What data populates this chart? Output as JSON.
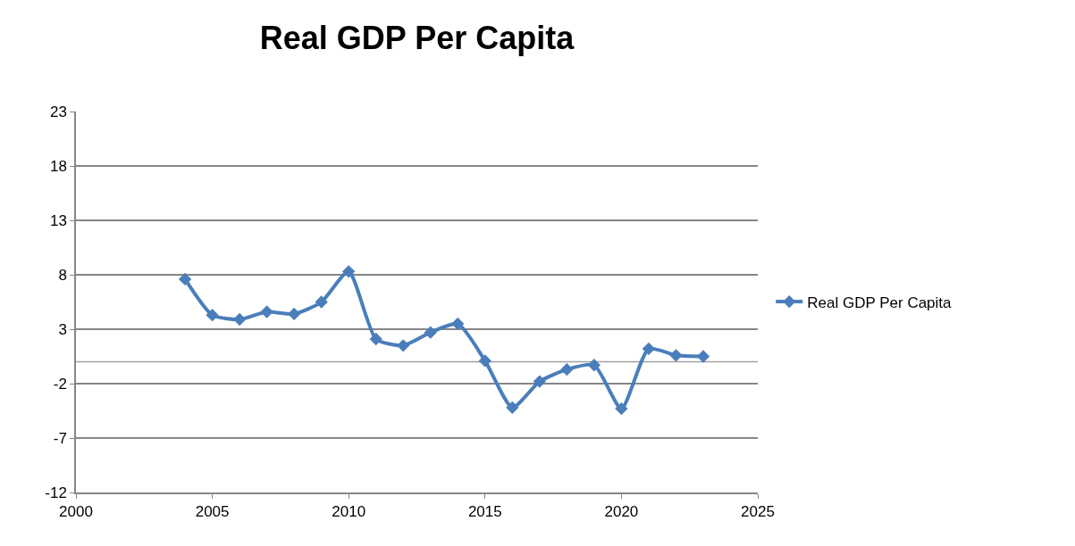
{
  "chart_data": {
    "type": "line",
    "title": "Real GDP Per Capita",
    "x": [
      2004,
      2005,
      2006,
      2007,
      2008,
      2009,
      2010,
      2011,
      2012,
      2013,
      2014,
      2015,
      2016,
      2017,
      2018,
      2019,
      2020,
      2021,
      2022,
      2023
    ],
    "series": [
      {
        "name": "Real GDP Per Capita",
        "color": "#4a7ebb",
        "values": [
          7.6,
          4.3,
          3.9,
          4.6,
          4.4,
          5.5,
          8.3,
          2.1,
          1.5,
          2.7,
          3.5,
          0.1,
          -4.2,
          -1.8,
          -0.7,
          -0.3,
          -4.3,
          1.2,
          0.6,
          0.5
        ]
      }
    ],
    "xlim": [
      2000,
      2025
    ],
    "xticks": [
      2000,
      2005,
      2010,
      2015,
      2020,
      2025
    ],
    "ylim": [
      -12,
      23
    ],
    "yticks": [
      -12,
      -7,
      -2,
      3,
      8,
      13,
      18,
      23
    ],
    "ref_lines": [
      {
        "axis": "y",
        "value": 0,
        "color": "#a0a0a0"
      }
    ],
    "grid": "y",
    "legend": "right",
    "marker": "diamond",
    "line_style": "solid"
  }
}
